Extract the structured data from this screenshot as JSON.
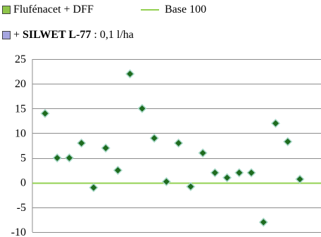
{
  "legend": {
    "series1_label": "Flufénacet + DFF",
    "series1_color": "#8fc54a",
    "base_label": "Base 100",
    "base_color": "#92d050",
    "series2_prefix": "+ ",
    "series2_bold": "SILWET L-77",
    "series2_suffix": " : 0,1 l/ha",
    "series2_color": "#8f8fd0"
  },
  "chart_data": {
    "type": "scatter",
    "title": "",
    "xlabel": "",
    "ylabel": "",
    "ylim": [
      -10,
      25
    ],
    "yticks": [
      25,
      20,
      15,
      10,
      5,
      0,
      -5,
      -10
    ],
    "ytick_labels": [
      "25",
      "20",
      "15",
      "10",
      "5",
      "0",
      "-5",
      "-10"
    ],
    "grid": true,
    "baseline": 0,
    "marker": "diamond",
    "marker_color": "#1e6b1e",
    "marker_edge": "#a9d9c9",
    "values": [
      14,
      5,
      5,
      8,
      -1,
      7,
      2.5,
      22,
      15,
      9,
      0.2,
      8,
      -0.8,
      6,
      2,
      1,
      2,
      2,
      -8,
      12,
      8.3,
      0.7
    ]
  }
}
